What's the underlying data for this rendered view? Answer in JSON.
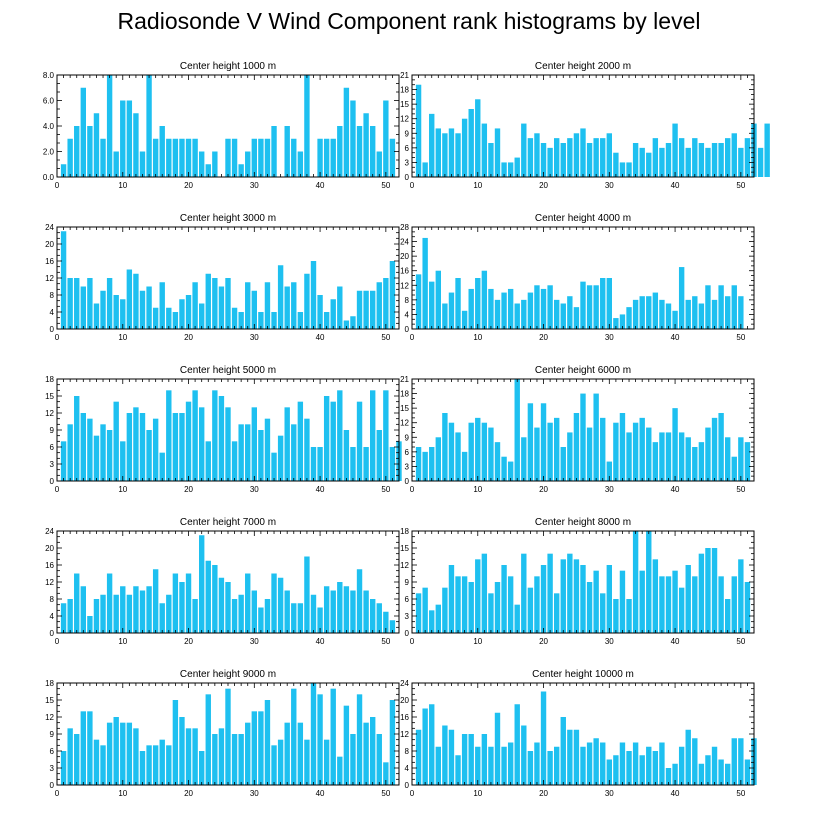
{
  "title": "Radiosonde V Wind Component rank histograms by level",
  "style": {
    "bar_color": "#1ec0f0",
    "axis_color": "#000000"
  },
  "chart_data": [
    {
      "type": "bar",
      "title": "Center height 1000 m",
      "xlim": [
        0,
        52
      ],
      "xticks": [
        0,
        10,
        20,
        30,
        40,
        50
      ],
      "ylim": [
        0,
        8
      ],
      "yticks": [
        0,
        2,
        4,
        6,
        8
      ],
      "ytick_labels": [
        "0.0",
        "2.0",
        "4.0",
        "6.0",
        "8.0"
      ],
      "values": [
        1,
        3,
        4,
        7,
        4,
        5,
        3,
        8,
        2,
        6,
        6,
        5,
        2,
        8,
        3,
        4,
        3,
        3,
        3,
        3,
        3,
        2,
        1,
        2,
        0,
        3,
        3,
        1,
        2,
        3,
        3,
        3,
        4,
        0,
        4,
        3,
        2,
        8,
        0,
        3,
        3,
        3,
        4,
        7,
        6,
        4,
        5,
        4,
        2,
        6,
        3
      ]
    },
    {
      "type": "bar",
      "title": "Center height 2000 m",
      "xlim": [
        0,
        52
      ],
      "xticks": [
        0,
        10,
        20,
        30,
        40,
        50
      ],
      "ylim": [
        0,
        21
      ],
      "yticks": [
        0,
        3,
        6,
        9,
        12,
        15,
        18,
        21
      ],
      "ytick_labels": [
        "0",
        "3",
        "6",
        "9",
        "12",
        "15",
        "18",
        "21"
      ],
      "values": [
        19,
        3,
        13,
        10,
        9,
        10,
        9,
        12,
        14,
        16,
        11,
        7,
        10,
        3,
        3,
        4,
        11,
        8,
        9,
        7,
        6,
        8,
        7,
        8,
        9,
        10,
        7,
        8,
        8,
        9,
        5,
        3,
        3,
        7,
        6,
        5,
        8,
        6,
        7,
        11,
        8,
        6,
        8,
        7,
        6,
        7,
        7,
        8,
        9,
        6,
        8,
        11,
        6,
        11
      ]
    },
    {
      "type": "bar",
      "title": "Center height 3000 m",
      "xlim": [
        0,
        52
      ],
      "xticks": [
        0,
        10,
        20,
        30,
        40,
        50
      ],
      "ylim": [
        0,
        24
      ],
      "yticks": [
        0,
        4,
        8,
        12,
        16,
        20,
        24
      ],
      "ytick_labels": [
        "0",
        "4",
        "8",
        "12",
        "16",
        "20",
        "24"
      ],
      "values": [
        23,
        12,
        12,
        10,
        12,
        6,
        9,
        12,
        8,
        7,
        14,
        13,
        9,
        10,
        5,
        11,
        5,
        4,
        7,
        8,
        11,
        6,
        13,
        12,
        10,
        12,
        5,
        4,
        11,
        9,
        4,
        11,
        4,
        15,
        10,
        11,
        4,
        13,
        16,
        8,
        4,
        7,
        10,
        2,
        3,
        9,
        9,
        9,
        11,
        12,
        16
      ]
    },
    {
      "type": "bar",
      "title": "Center height 4000 m",
      "xlim": [
        0,
        52
      ],
      "xticks": [
        0,
        10,
        20,
        30,
        40,
        50
      ],
      "ylim": [
        0,
        28
      ],
      "yticks": [
        0,
        4,
        8,
        12,
        16,
        20,
        24,
        28
      ],
      "ytick_labels": [
        "0",
        "4",
        "8",
        "12",
        "16",
        "20",
        "24",
        "28"
      ],
      "values": [
        15,
        25,
        13,
        16,
        7,
        10,
        14,
        5,
        11,
        14,
        16,
        11,
        8,
        10,
        11,
        7,
        8,
        10,
        12,
        11,
        12,
        8,
        7,
        9,
        6,
        13,
        12,
        12,
        14,
        14,
        3,
        4,
        6,
        8,
        9,
        9,
        10,
        8,
        7,
        5,
        17,
        8,
        9,
        7,
        12,
        8,
        12,
        9,
        12,
        9
      ]
    },
    {
      "type": "bar",
      "title": "Center height 5000 m",
      "xlim": [
        0,
        52
      ],
      "xticks": [
        0,
        10,
        20,
        30,
        40,
        50
      ],
      "ylim": [
        0,
        18
      ],
      "yticks": [
        0,
        3,
        6,
        9,
        12,
        15,
        18
      ],
      "ytick_labels": [
        "0",
        "3",
        "6",
        "9",
        "12",
        "15",
        "18"
      ],
      "values": [
        7,
        10,
        15,
        12,
        11,
        8,
        10,
        9,
        14,
        7,
        12,
        13,
        12,
        9,
        11,
        5,
        16,
        12,
        12,
        14,
        16,
        13,
        7,
        16,
        15,
        13,
        7,
        10,
        10,
        13,
        9,
        11,
        5,
        8,
        13,
        10,
        14,
        11,
        6,
        6,
        15,
        14,
        16,
        9,
        6,
        14,
        6,
        16,
        9,
        16,
        6,
        7
      ]
    },
    {
      "type": "bar",
      "title": "Center height 6000 m",
      "xlim": [
        0,
        52
      ],
      "xticks": [
        0,
        10,
        20,
        30,
        40,
        50
      ],
      "ylim": [
        0,
        21
      ],
      "yticks": [
        0,
        3,
        6,
        9,
        12,
        15,
        18,
        21
      ],
      "ytick_labels": [
        "0",
        "3",
        "6",
        "9",
        "12",
        "15",
        "18",
        "21"
      ],
      "values": [
        7,
        6,
        7,
        9,
        14,
        12,
        10,
        6,
        12,
        13,
        12,
        11,
        8,
        5,
        4,
        21,
        9,
        16,
        11,
        16,
        12,
        13,
        7,
        10,
        14,
        18,
        11,
        18,
        13,
        4,
        12,
        14,
        10,
        12,
        13,
        11,
        8,
        10,
        10,
        15,
        10,
        9,
        7,
        8,
        11,
        13,
        14,
        9,
        5,
        9,
        8
      ]
    },
    {
      "type": "bar",
      "title": "Center height 7000 m",
      "xlim": [
        0,
        52
      ],
      "xticks": [
        0,
        10,
        20,
        30,
        40,
        50
      ],
      "ylim": [
        0,
        24
      ],
      "yticks": [
        0,
        4,
        8,
        12,
        16,
        20,
        24
      ],
      "ytick_labels": [
        "0",
        "4",
        "8",
        "12",
        "16",
        "20",
        "24"
      ],
      "values": [
        7,
        8,
        14,
        11,
        4,
        8,
        9,
        14,
        9,
        11,
        9,
        11,
        10,
        11,
        15,
        7,
        9,
        14,
        12,
        14,
        8,
        23,
        17,
        16,
        13,
        12,
        8,
        9,
        14,
        10,
        6,
        8,
        14,
        13,
        10,
        7,
        7,
        18,
        9,
        6,
        11,
        10,
        12,
        11,
        10,
        15,
        10,
        8,
        7,
        5,
        3
      ]
    },
    {
      "type": "bar",
      "title": "Center height 8000 m",
      "xlim": [
        0,
        52
      ],
      "xticks": [
        0,
        10,
        20,
        30,
        40,
        50
      ],
      "ylim": [
        0,
        18
      ],
      "yticks": [
        0,
        3,
        6,
        9,
        12,
        15,
        18
      ],
      "ytick_labels": [
        "0",
        "3",
        "6",
        "9",
        "12",
        "15",
        "18"
      ],
      "values": [
        7,
        8,
        4,
        5,
        8,
        12,
        10,
        10,
        9,
        13,
        14,
        7,
        9,
        12,
        10,
        5,
        14,
        8,
        10,
        12,
        14,
        7,
        13,
        14,
        13,
        12,
        9,
        11,
        7,
        12,
        6,
        11,
        6,
        18,
        11,
        18,
        13,
        10,
        10,
        11,
        8,
        12,
        10,
        14,
        15,
        15,
        10,
        6,
        10,
        13,
        9
      ]
    },
    {
      "type": "bar",
      "title": "Center height 9000 m",
      "xlim": [
        0,
        52
      ],
      "xticks": [
        0,
        10,
        20,
        30,
        40,
        50
      ],
      "ylim": [
        0,
        18
      ],
      "yticks": [
        0,
        3,
        6,
        9,
        12,
        15,
        18
      ],
      "ytick_labels": [
        "0",
        "3",
        "6",
        "9",
        "12",
        "15",
        "18"
      ],
      "values": [
        6,
        10,
        9,
        13,
        13,
        8,
        7,
        11,
        12,
        11,
        11,
        10,
        6,
        7,
        7,
        8,
        7,
        15,
        12,
        10,
        10,
        6,
        16,
        9,
        10,
        17,
        9,
        9,
        11,
        13,
        13,
        15,
        7,
        8,
        11,
        17,
        11,
        8,
        18,
        16,
        8,
        17,
        5,
        14,
        9,
        16,
        11,
        12,
        9,
        4,
        15
      ]
    },
    {
      "type": "bar",
      "title": "Center height 10000 m",
      "xlim": [
        0,
        52
      ],
      "xticks": [
        0,
        10,
        20,
        30,
        40,
        50
      ],
      "ylim": [
        0,
        24
      ],
      "yticks": [
        0,
        4,
        8,
        12,
        16,
        20,
        24
      ],
      "ytick_labels": [
        "0",
        "4",
        "8",
        "12",
        "16",
        "20",
        "24"
      ],
      "values": [
        13,
        18,
        19,
        9,
        14,
        13,
        7,
        12,
        12,
        9,
        12,
        9,
        17,
        9,
        10,
        19,
        14,
        8,
        10,
        22,
        8,
        9,
        16,
        13,
        13,
        9,
        10,
        11,
        10,
        6,
        7,
        10,
        8,
        10,
        7,
        9,
        8,
        10,
        4,
        5,
        9,
        13,
        11,
        5,
        7,
        9,
        6,
        5,
        11,
        11,
        6,
        11
      ]
    }
  ]
}
